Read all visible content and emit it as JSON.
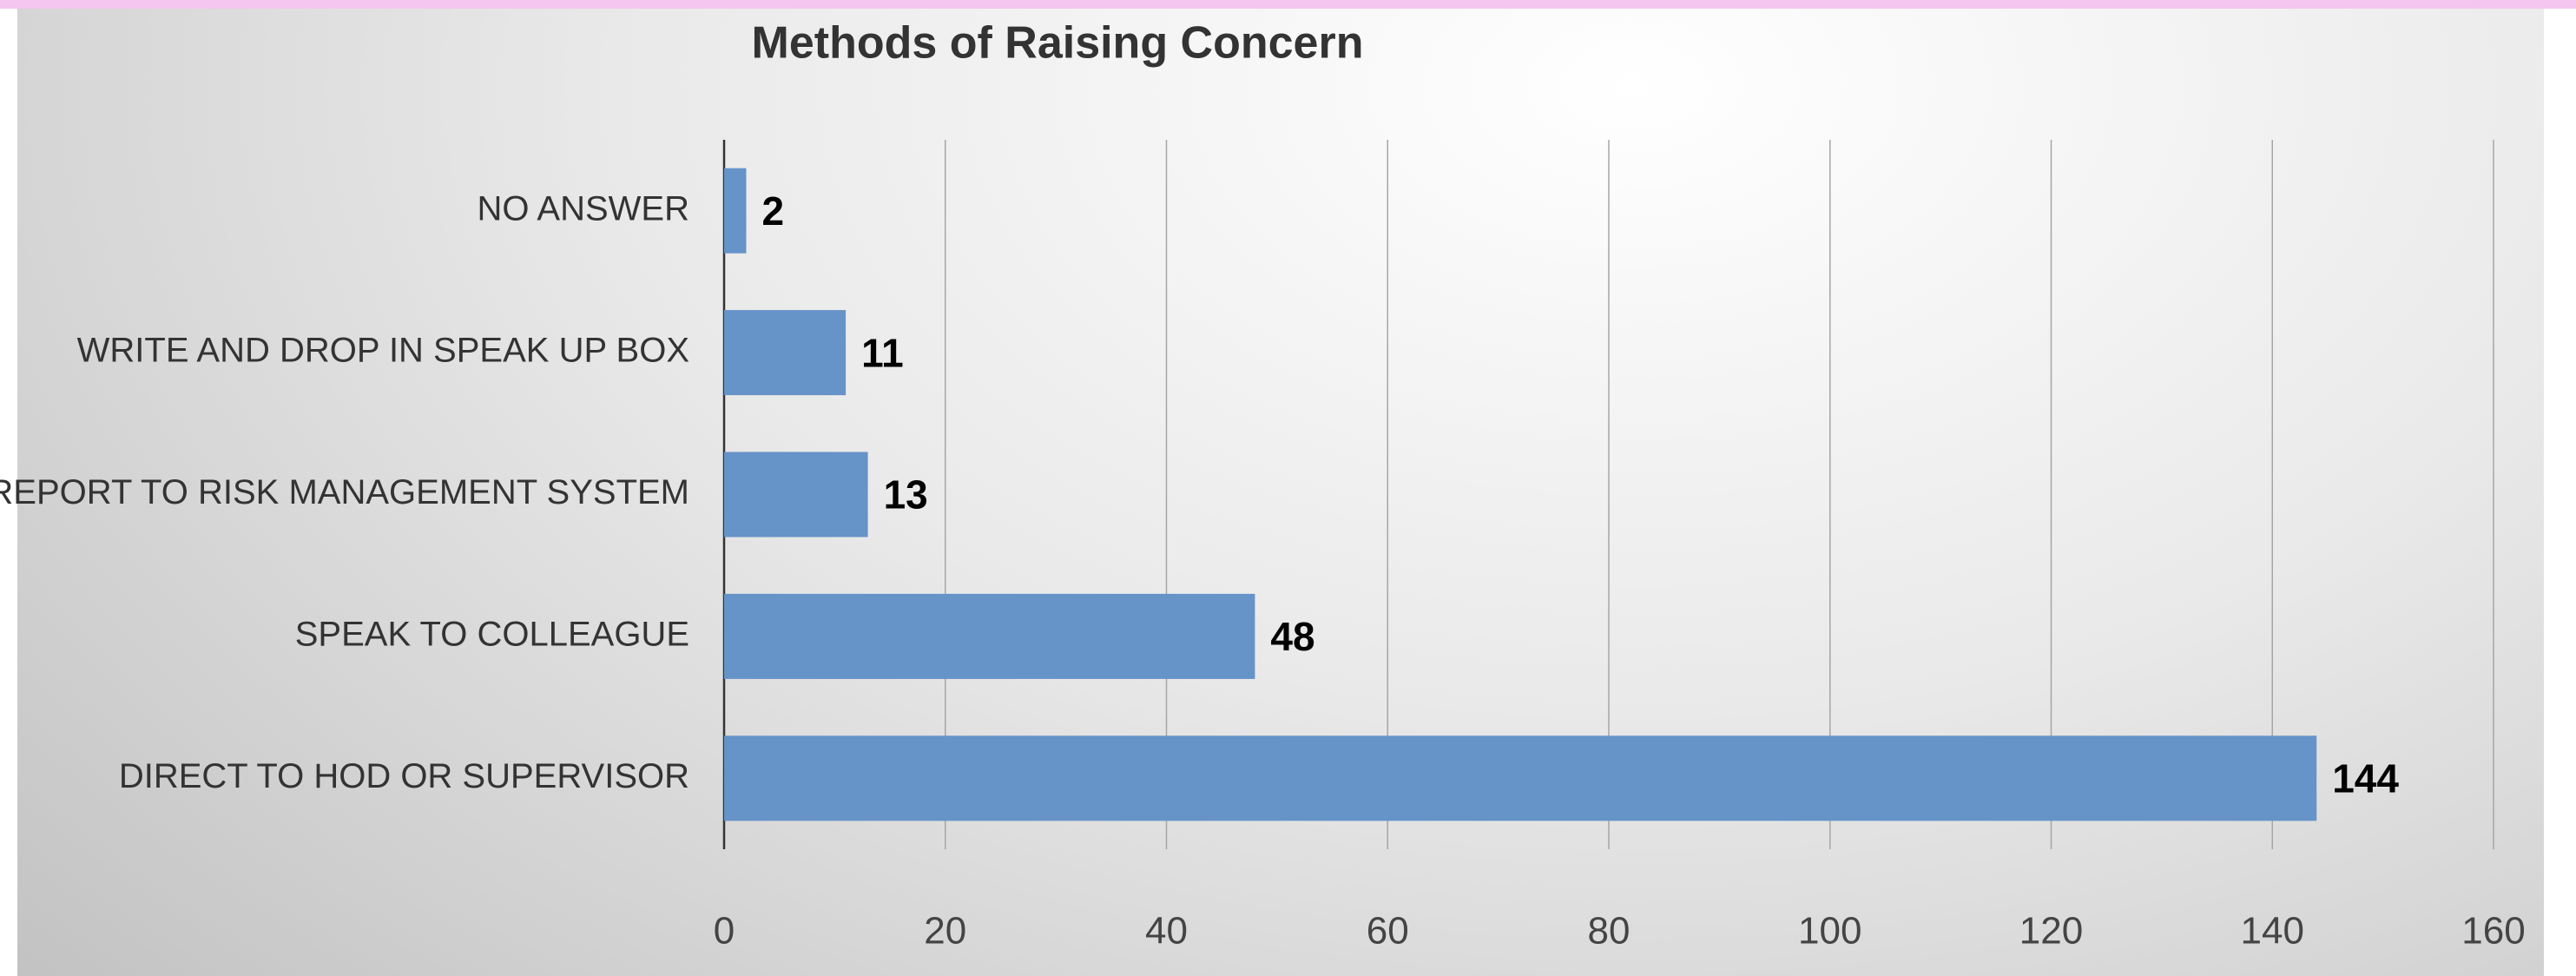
{
  "chart_data": {
    "type": "bar",
    "orientation": "horizontal",
    "title": "Methods of Raising Concern",
    "categories": [
      "NO ANSWER",
      "WRITE AND DROP IN SPEAK UP BOX",
      "REPORT TO RISK MANAGEMENT SYSTEM",
      "SPEAK TO COLLEAGUE",
      "DIRECT TO HOD OR SUPERVISOR"
    ],
    "values": [
      2,
      11,
      13,
      48,
      144
    ],
    "color": "#6693c8",
    "xlim": [
      0,
      160
    ],
    "xticks": [
      0,
      20,
      40,
      60,
      80,
      100,
      120,
      140,
      160
    ],
    "grid": true
  }
}
